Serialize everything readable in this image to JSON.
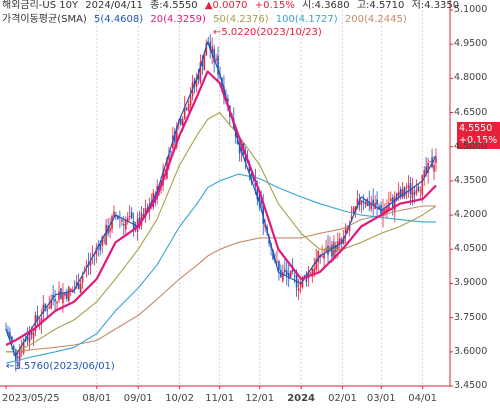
{
  "header": {
    "title": "해외금리-US 10Y",
    "date": "2024/04/11",
    "close_label": "종:4.5550",
    "change": "▲0.0070",
    "change_pct": "+0.15%",
    "open": "시:4.3680",
    "high": "고:4.5710",
    "low": "저:4.3350"
  },
  "ma_legend": {
    "title": "가격이동평균(SMA)",
    "items": [
      {
        "label": "5(4.4608)",
        "color": "#1f56b8"
      },
      {
        "label": "20(4.3259)",
        "color": "#e0197d"
      },
      {
        "label": "50(4.2376)",
        "color": "#a8a04a"
      },
      {
        "label": "100(4.1727)",
        "color": "#3aa3d6"
      },
      {
        "label": "200(4.2445)",
        "color": "#c48a6a"
      }
    ]
  },
  "annotations": {
    "high": "5.0220(2023/10/23)",
    "low": "3.5760(2023/06/01)"
  },
  "price_box": {
    "price": "4.5550",
    "change": "+0.15%"
  },
  "colors": {
    "up": "#e8203a",
    "down": "#1f56b8",
    "axis": "#e8203a"
  },
  "chart_data": {
    "type": "line",
    "ylim": [
      3.45,
      5.1
    ],
    "yticks": [
      "5.1000",
      "4.9500",
      "4.8000",
      "4.6500",
      "4.5000",
      "4.3500",
      "4.2000",
      "4.0500",
      "3.9000",
      "3.7500",
      "3.6000",
      "3.4500"
    ],
    "xticks": [
      "2023/05/25",
      "08/01",
      "09/01",
      "10/02",
      "11/01",
      "12/01",
      "2024",
      "02/01",
      "03/01",
      "04/01"
    ],
    "x": [
      "2023-05-25",
      "2023-06-01",
      "2023-06-15",
      "2023-07-01",
      "2023-07-15",
      "2023-08-01",
      "2023-08-15",
      "2023-09-01",
      "2023-09-15",
      "2023-10-02",
      "2023-10-15",
      "2023-10-23",
      "2023-11-01",
      "2023-11-15",
      "2023-12-01",
      "2023-12-15",
      "2024-01-01",
      "2024-01-15",
      "2024-02-01",
      "2024-02-15",
      "2024-03-01",
      "2024-03-15",
      "2024-04-01",
      "2024-04-11"
    ],
    "series": [
      {
        "name": "5",
        "values": [
          3.7,
          3.58,
          3.72,
          3.85,
          3.87,
          4.05,
          4.2,
          4.15,
          4.3,
          4.62,
          4.8,
          4.96,
          4.82,
          4.52,
          4.25,
          3.95,
          3.9,
          4.02,
          4.08,
          4.28,
          4.22,
          4.28,
          4.35,
          4.46
        ]
      },
      {
        "name": "20",
        "values": [
          3.63,
          3.65,
          3.7,
          3.78,
          3.82,
          3.92,
          4.08,
          4.15,
          4.28,
          4.55,
          4.72,
          4.83,
          4.78,
          4.55,
          4.3,
          4.05,
          3.92,
          3.95,
          4.05,
          4.15,
          4.2,
          4.25,
          4.27,
          4.33
        ]
      },
      {
        "name": "50",
        "values": [
          3.6,
          3.6,
          3.64,
          3.7,
          3.74,
          3.82,
          3.92,
          4.05,
          4.18,
          4.42,
          4.55,
          4.62,
          4.65,
          4.55,
          4.42,
          4.25,
          4.12,
          4.05,
          4.05,
          4.08,
          4.12,
          4.15,
          4.2,
          4.24
        ]
      },
      {
        "name": "100",
        "values": [
          3.55,
          3.56,
          3.58,
          3.6,
          3.62,
          3.68,
          3.78,
          3.88,
          3.98,
          4.15,
          4.25,
          4.32,
          4.35,
          4.38,
          4.36,
          4.32,
          4.28,
          4.25,
          4.22,
          4.2,
          4.19,
          4.18,
          4.17,
          4.17
        ]
      },
      {
        "name": "200",
        "values": [
          3.6,
          3.6,
          3.61,
          3.62,
          3.63,
          3.65,
          3.7,
          3.76,
          3.83,
          3.92,
          3.98,
          4.02,
          4.05,
          4.08,
          4.1,
          4.1,
          4.1,
          4.12,
          4.14,
          4.18,
          4.2,
          4.22,
          4.24,
          4.24
        ]
      }
    ]
  }
}
